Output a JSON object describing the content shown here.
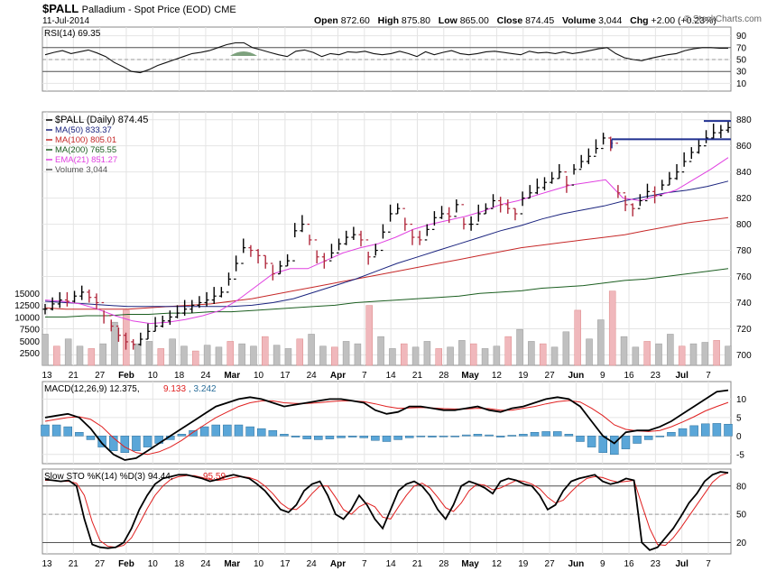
{
  "header": {
    "symbol": "$PALL",
    "name": "Palladium - Spot Price (EOD)",
    "exchange": "CME",
    "date": "11-Jul-2014",
    "open_label": "Open",
    "open": "872.60",
    "high_label": "High",
    "high": "875.80",
    "low_label": "Low",
    "low": "865.00",
    "close_label": "Close",
    "close": "874.45",
    "volume_label": "Volume",
    "volume": "3,044",
    "chg_label": "Chg",
    "chg": "+2.00 (+0.23%)",
    "watermark": "© StockCharts.com"
  },
  "x_axis": {
    "labels": [
      {
        "text": "13",
        "bold": false
      },
      {
        "text": "21",
        "bold": false
      },
      {
        "text": "27",
        "bold": false
      },
      {
        "text": "Feb",
        "bold": true
      },
      {
        "text": "10",
        "bold": false
      },
      {
        "text": "18",
        "bold": false
      },
      {
        "text": "24",
        "bold": false
      },
      {
        "text": "Mar",
        "bold": true
      },
      {
        "text": "10",
        "bold": false
      },
      {
        "text": "17",
        "bold": false
      },
      {
        "text": "24",
        "bold": false
      },
      {
        "text": "Apr",
        "bold": true
      },
      {
        "text": "7",
        "bold": false
      },
      {
        "text": "14",
        "bold": false
      },
      {
        "text": "21",
        "bold": false
      },
      {
        "text": "28",
        "bold": false
      },
      {
        "text": "May",
        "bold": true
      },
      {
        "text": "12",
        "bold": false
      },
      {
        "text": "19",
        "bold": false
      },
      {
        "text": "27",
        "bold": false
      },
      {
        "text": "Jun",
        "bold": true
      },
      {
        "text": "9",
        "bold": false
      },
      {
        "text": "16",
        "bold": false
      },
      {
        "text": "23",
        "bold": false
      },
      {
        "text": "Jul",
        "bold": true
      },
      {
        "text": "7",
        "bold": false
      }
    ]
  },
  "colors": {
    "price": "#000000",
    "down_bar": "#b0283c",
    "ma50": "#1a237e",
    "ma100": "#c62828",
    "ma200": "#1b5e20",
    "ema21": "#e040e0",
    "volume_up": "#c0c0c0",
    "volume_down": "#f0b8bc",
    "macd_hist": "#5aa6d8",
    "resistance": "#1f2f8f",
    "rsi_fill": "#5c8a5c",
    "signal": "#e02020"
  },
  "chart_data": [
    {
      "type": "line",
      "title": "RSI(14) 69.35",
      "y_ticks": [
        90,
        70,
        50,
        30,
        10
      ],
      "ylim": [
        0,
        100
      ],
      "reference_lines": [
        70,
        30
      ],
      "series": [
        {
          "name": "RSI(14)",
          "values": [
            58,
            62,
            65,
            60,
            63,
            66,
            61,
            55,
            45,
            38,
            30,
            28,
            33,
            40,
            45,
            50,
            55,
            60,
            62,
            65,
            70,
            75,
            78,
            78,
            70,
            66,
            62,
            58,
            55,
            64,
            66,
            62,
            55,
            60,
            58,
            63,
            62,
            64,
            60,
            58,
            60,
            64,
            60,
            55,
            63,
            58,
            62,
            65,
            60,
            58,
            60,
            63,
            64,
            62,
            60,
            58,
            64,
            61,
            62,
            60,
            63,
            60,
            62,
            65,
            68,
            70,
            60,
            53,
            50,
            48,
            52,
            55,
            58,
            60,
            65,
            68,
            70,
            70,
            69,
            69
          ]
        }
      ]
    },
    {
      "type": "line",
      "title": "$PALL (Daily)",
      "ylabel": "",
      "ylim": [
        692,
        886
      ],
      "y_ticks": [
        880,
        860,
        840,
        820,
        800,
        780,
        760,
        740,
        720,
        700
      ],
      "legend": [
        {
          "text": "$PALL (Daily) 874.45",
          "key": "price"
        },
        {
          "text": "MA(50) 833.37",
          "key": "ma50"
        },
        {
          "text": "MA(100) 805.01",
          "key": "ma100"
        },
        {
          "text": "MA(200) 765.55",
          "key": "ma200"
        },
        {
          "text": "EMA(21) 851.27",
          "key": "ema21"
        },
        {
          "text": "Volume 3,044",
          "key": "volume"
        }
      ],
      "series": [
        {
          "name": "$PALL (Daily)",
          "values": [
            735,
            739,
            742,
            741,
            745,
            748,
            744,
            740,
            730,
            722,
            715,
            710,
            708,
            712,
            718,
            722,
            726,
            729,
            732,
            735,
            738,
            740,
            742,
            745,
            748,
            758,
            770,
            782,
            780,
            776,
            770,
            762,
            768,
            772,
            795,
            800,
            788,
            775,
            772,
            778,
            785,
            790,
            792,
            788,
            775,
            780,
            794,
            808,
            812,
            800,
            790,
            788,
            796,
            805,
            808,
            806,
            815,
            800,
            800,
            808,
            812,
            818,
            815,
            812,
            808,
            820,
            824,
            828,
            832,
            835,
            840,
            830,
            842,
            848,
            852,
            858,
            866,
            862,
            824,
            815,
            812,
            818,
            825,
            822,
            830,
            835,
            840,
            848,
            855,
            860,
            866,
            870,
            872,
            874
          ]
        },
        {
          "name": "MA(50)",
          "values": [
            741,
            740,
            739,
            738,
            737,
            737,
            737,
            737,
            737,
            737,
            738,
            740,
            743,
            748,
            753,
            758,
            764,
            770,
            775,
            780,
            785,
            790,
            795,
            799,
            804,
            808,
            811,
            814,
            818,
            821,
            824,
            826,
            829,
            833
          ]
        },
        {
          "name": "MA(100)",
          "values": [
            736,
            735,
            735,
            735,
            735,
            736,
            737,
            738,
            739,
            741,
            743,
            746,
            749,
            752,
            755,
            758,
            761,
            764,
            767,
            770,
            773,
            776,
            779,
            782,
            784,
            786,
            788,
            790,
            792,
            795,
            798,
            801,
            803,
            805
          ]
        },
        {
          "name": "MA(200)",
          "values": [
            729,
            729,
            730,
            730,
            731,
            731,
            732,
            732,
            733,
            733,
            734,
            735,
            736,
            737,
            738,
            740,
            741,
            742,
            743,
            744,
            745,
            747,
            748,
            749,
            751,
            752,
            753,
            755,
            757,
            758,
            760,
            762,
            764,
            766
          ]
        },
        {
          "name": "EMA(21)",
          "values": [
            742,
            741,
            739,
            735,
            730,
            726,
            724,
            725,
            727,
            730,
            734,
            742,
            752,
            762,
            766,
            766,
            772,
            778,
            782,
            785,
            790,
            796,
            800,
            803,
            806,
            810,
            815,
            818,
            822,
            826,
            830,
            832,
            834,
            820,
            818,
            822,
            826,
            834,
            842,
            851
          ]
        },
        {
          "name": "Volume",
          "values": [
            6500,
            4000,
            5500,
            4000,
            3500,
            4500,
            9000,
            11500,
            4500,
            5000,
            3500,
            5500,
            4000,
            3000,
            4200,
            3800,
            5000,
            4500,
            4000,
            6000,
            4200,
            3500,
            5500,
            6500,
            4000,
            3800,
            5000,
            4500,
            12500,
            6000,
            3500,
            4500,
            3800,
            5000,
            3500,
            3800,
            5200,
            4500,
            3500,
            4000,
            6000,
            7500,
            5000,
            4500,
            3800,
            7000,
            11500,
            5500,
            9500,
            15500,
            6000,
            3800,
            5000,
            4500,
            6500,
            4000,
            4500,
            4800,
            5200,
            4000
          ]
        }
      ],
      "resistance_levels": [
        865,
        879
      ]
    },
    {
      "type": "line",
      "title": "MACD(12,26,9) 12.375, 9.133, 3.242",
      "y_ticks": [
        10,
        5,
        0,
        -5
      ],
      "ylim": [
        -7,
        14
      ],
      "series": [
        {
          "name": "MACD",
          "values": [
            5,
            5.5,
            6,
            5,
            2,
            -2,
            -5,
            -6.5,
            -6,
            -4,
            -2,
            0,
            2,
            4,
            6,
            8,
            9,
            10,
            10.5,
            10,
            9,
            8,
            8.5,
            9,
            9.5,
            10,
            10,
            9.5,
            9,
            7,
            6,
            6.5,
            8,
            8,
            7.5,
            7,
            7,
            7.5,
            8,
            7,
            6.5,
            7.5,
            8,
            9,
            10,
            10.5,
            10,
            8,
            4,
            0,
            -2,
            1,
            1.5,
            1.5,
            2.5,
            4,
            6,
            8,
            10,
            12,
            12.4
          ]
        },
        {
          "name": "Signal",
          "values": [
            4,
            4.5,
            5,
            5.2,
            4.5,
            2.5,
            -0.5,
            -3,
            -4.5,
            -5,
            -4.3,
            -3,
            -1.2,
            1,
            3,
            5,
            6.5,
            8,
            9,
            9.5,
            9.5,
            9,
            8.8,
            8.8,
            9,
            9.3,
            9.5,
            9.5,
            9.3,
            8.7,
            8,
            7.5,
            7.6,
            7.7,
            7.6,
            7.4,
            7.3,
            7.3,
            7.5,
            7.4,
            7,
            7,
            7.5,
            8,
            8.7,
            9.3,
            9.6,
            9.2,
            7.5,
            5.5,
            3,
            1.8,
            1.4,
            1.2,
            1.5,
            2.5,
            3.8,
            5.2,
            6.8,
            8,
            9.1
          ]
        },
        {
          "name": "Histogram",
          "values": [
            3,
            3,
            2.5,
            1,
            -1,
            -3,
            -4,
            -4.5,
            -4,
            -3,
            -2,
            -1,
            0.5,
            1.5,
            2.5,
            3,
            3,
            3,
            2.5,
            2,
            1.5,
            0.5,
            -0.3,
            -0.8,
            -1,
            -0.8,
            -0.5,
            -0.3,
            -0.5,
            -1.2,
            -1.5,
            -1,
            -0.5,
            0,
            -0.3,
            -0.2,
            0,
            0.3,
            0.5,
            0.3,
            -0.3,
            0.2,
            0.5,
            1,
            1.2,
            1.2,
            0.5,
            -1.5,
            -3,
            -4.5,
            -5,
            -3.5,
            -2,
            -1,
            0,
            1,
            2,
            2.8,
            3.3,
            3.4,
            3.2
          ]
        }
      ]
    },
    {
      "type": "line",
      "title": "Slow STO %K(14) %D(3) 94.44, 95.59",
      "y_ticks": [
        80,
        50,
        20
      ],
      "ylim": [
        8,
        98
      ],
      "reference_lines": [
        80,
        20
      ],
      "series": [
        {
          "name": "%K(14)",
          "values": [
            87,
            86,
            85,
            86,
            80,
            45,
            18,
            15,
            14,
            15,
            20,
            35,
            55,
            70,
            82,
            88,
            90,
            92,
            92,
            90,
            88,
            85,
            87,
            90,
            92,
            90,
            88,
            82,
            75,
            65,
            55,
            52,
            60,
            75,
            82,
            85,
            70,
            50,
            45,
            55,
            70,
            60,
            45,
            35,
            55,
            75,
            82,
            85,
            80,
            70,
            55,
            45,
            60,
            80,
            85,
            82,
            78,
            72,
            85,
            88,
            86,
            82,
            80,
            70,
            55,
            60,
            75,
            85,
            88,
            90,
            92,
            85,
            82,
            84,
            88,
            86,
            20,
            12,
            15,
            25,
            35,
            48,
            62,
            72,
            85,
            92,
            95,
            94
          ]
        },
        {
          "name": "%D(3)",
          "values": [
            86,
            86,
            85,
            85,
            83,
            70,
            42,
            22,
            16,
            15,
            17,
            25,
            40,
            56,
            70,
            80,
            87,
            90,
            91,
            91,
            89,
            87,
            86,
            87,
            89,
            90,
            89,
            86,
            80,
            72,
            62,
            56,
            55,
            62,
            72,
            80,
            80,
            68,
            55,
            50,
            58,
            62,
            58,
            47,
            45,
            58,
            70,
            80,
            83,
            78,
            68,
            57,
            53,
            62,
            75,
            82,
            81,
            76,
            78,
            82,
            86,
            85,
            82,
            77,
            68,
            62,
            65,
            74,
            82,
            88,
            90,
            89,
            86,
            84,
            85,
            86,
            60,
            35,
            18,
            17,
            25,
            36,
            48,
            60,
            72,
            84,
            91,
            94
          ]
        }
      ]
    }
  ]
}
